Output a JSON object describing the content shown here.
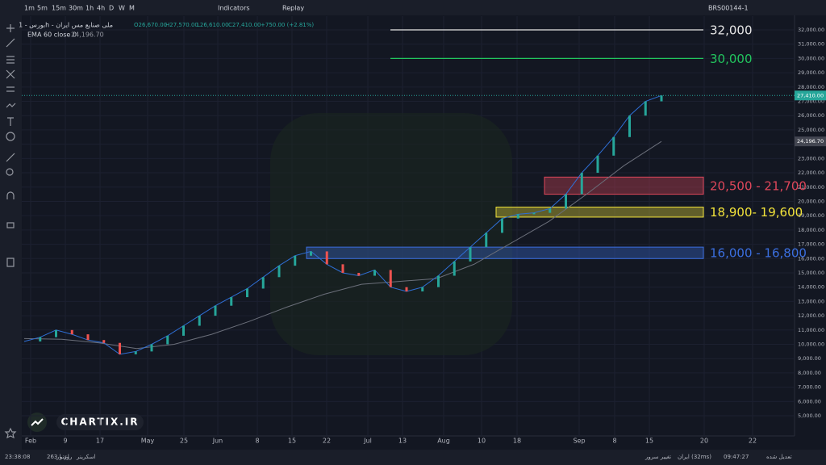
{
  "toolbar": {
    "intervals": [
      "1m",
      "5m",
      "15m",
      "30m",
      "1h",
      "4h",
      "D",
      "W",
      "M"
    ],
    "indicators": "Indicators",
    "replay": "Replay",
    "symbol": "BRS00144-1"
  },
  "legend": {
    "title": "بورس - 1h - ملی صنایع مس ایران",
    "open": "O26,670.00",
    "high": "H27,570.00",
    "low": "L26,610.00",
    "close": "C27,410.00",
    "change": "+750.00 (+2.81%)",
    "ema": "EMA 60 close 0",
    "ema_value": "24,196.70"
  },
  "price_axis": {
    "ylim": [
      3590,
      32960
    ],
    "ticks": [
      {
        "value": 32000,
        "label": "32,000.00"
      },
      {
        "value": 31000,
        "label": "31,000.00"
      },
      {
        "value": 30000,
        "label": "30,000.00"
      },
      {
        "value": 29000,
        "label": "29,000.00"
      },
      {
        "value": 28000,
        "label": "28,000.00"
      },
      {
        "value": 27000,
        "label": "27,000.00"
      },
      {
        "value": 26000,
        "label": "26,000.00"
      },
      {
        "value": 25000,
        "label": "25,000.00"
      },
      {
        "value": 24000,
        "label": "24,000.00"
      },
      {
        "value": 23000,
        "label": "23,000.00"
      },
      {
        "value": 22000,
        "label": "22,000.00"
      },
      {
        "value": 21000,
        "label": "21,000.00"
      },
      {
        "value": 20000,
        "label": "20,000.00"
      },
      {
        "value": 19000,
        "label": "19,000.00"
      },
      {
        "value": 18000,
        "label": "18,000.00"
      },
      {
        "value": 17000,
        "label": "17,000.00"
      },
      {
        "value": 16000,
        "label": "16,000.00"
      },
      {
        "value": 15000,
        "label": "15,000.00"
      },
      {
        "value": 14000,
        "label": "14,000.00"
      },
      {
        "value": 13000,
        "label": "13,000.00"
      },
      {
        "value": 12000,
        "label": "12,000.00"
      },
      {
        "value": 11000,
        "label": "11,000.00"
      },
      {
        "value": 10000,
        "label": "10,000.00"
      },
      {
        "value": 9000,
        "label": "9,000.00"
      },
      {
        "value": 8000,
        "label": "8,000.00"
      },
      {
        "value": 7000,
        "label": "7,000.00"
      },
      {
        "value": 6000,
        "label": "6,000.00"
      },
      {
        "value": 5000,
        "label": "5,000.00"
      }
    ]
  },
  "time_axis": {
    "labels": [
      "Feb",
      "9",
      "17",
      "May",
      "25",
      "Jun",
      "8",
      "15",
      "22",
      "Jul",
      "13",
      "Aug",
      "10",
      "18",
      "Sep",
      "8",
      "15",
      "20",
      "22"
    ]
  },
  "series": {
    "close": [
      10200,
      10500,
      11000,
      10700,
      10300,
      10100,
      9300,
      9500,
      10000,
      10600,
      11300,
      12000,
      12700,
      13300,
      13900,
      14700,
      15500,
      16200,
      16500,
      15600,
      15000,
      14800,
      15200,
      14000,
      13700,
      14000,
      14800,
      15800,
      16800,
      17800,
      18800,
      19100,
      19200,
      19500,
      20500,
      22000,
      23200,
      24500,
      26000,
      27000,
      27410
    ],
    "ema": [
      10400,
      10350,
      10100,
      9700,
      10000,
      10700,
      11600,
      12600,
      13500,
      14200,
      14400,
      14600,
      15600,
      17100,
      18600,
      20500,
      22500,
      24196.7
    ]
  },
  "price_tags": [
    {
      "value": 27410,
      "label": "27,410.00"
    },
    {
      "value": 24196.7,
      "label": "24,196.70"
    }
  ],
  "levels": [
    {
      "value": 32000,
      "label": "32,000",
      "color": "#e6e6e6"
    },
    {
      "value": 30000,
      "label": "30,000",
      "color": "#22c55e"
    }
  ],
  "zones": [
    {
      "low": 20500,
      "high": 21700,
      "label": "20,500 - 21,700",
      "color": "#e0475b"
    },
    {
      "low": 18900,
      "high": 19600,
      "label": "18,900- 19,600",
      "color": "#f2e33a"
    },
    {
      "low": 16000,
      "high": 16800,
      "label": "16,000 - 16,800",
      "color": "#3b6fe0"
    }
  ],
  "watermark": "CHARTIX.IR",
  "status": {
    "clock": "23:38:08",
    "days": "263 روز و",
    "credit": "اعتبار",
    "screener": "اسکرینر",
    "server": "تغییر سرور",
    "region": "ایران (32ms)",
    "time": "09:47:27",
    "adjusted": "تعدیل شده"
  }
}
